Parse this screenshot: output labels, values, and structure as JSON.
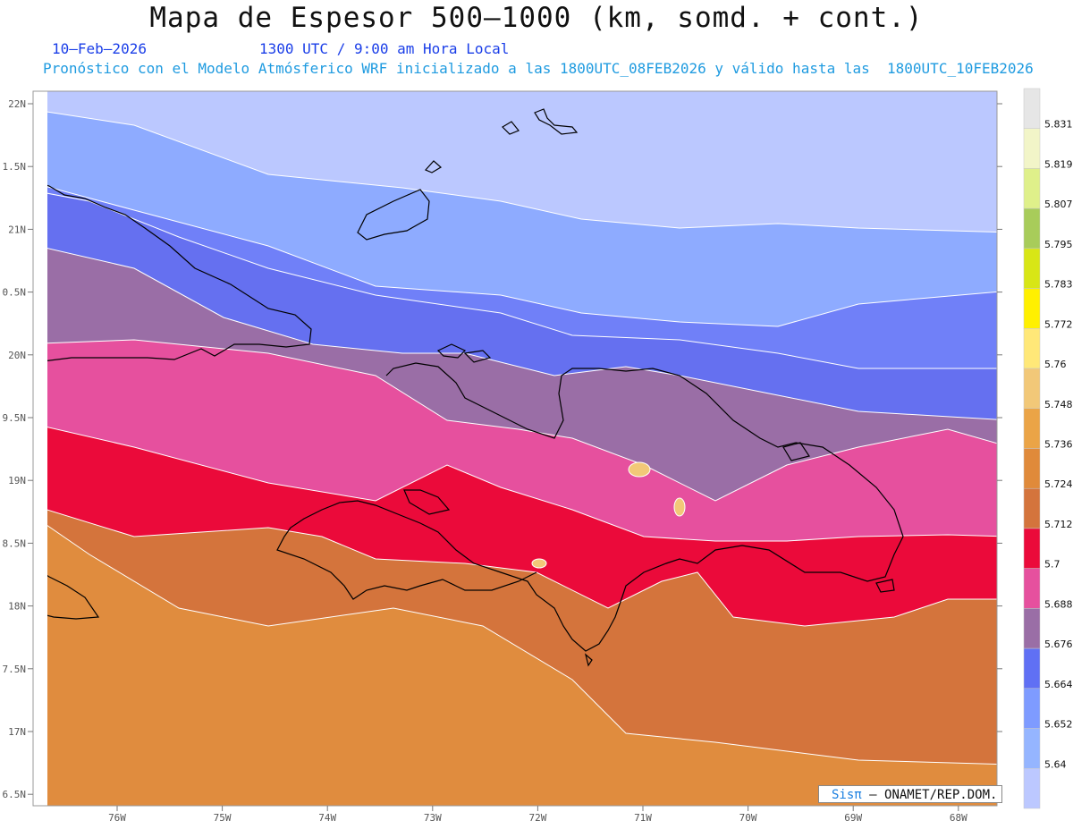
{
  "header": {
    "title": "Mapa de Espesor 500–1000 (km, somd. + cont.)",
    "date": "10–Feb–2026",
    "time": "1300 UTC / 9:00 am Hora Local",
    "forecast": "Pronóstico con el Modelo Atmósferico WRF inicializado a las 1800UTC_08FEB2026 y válido hasta las  1800UTC_10FEB2026"
  },
  "axes": {
    "lat_labels": [
      "22N",
      "1.5N",
      "21N",
      "0.5N",
      "20N",
      "9.5N",
      "19N",
      "8.5N",
      "18N",
      "7.5N",
      "17N",
      "6.5N"
    ],
    "lon_labels": [
      "76W",
      "75W",
      "74W",
      "73W",
      "72W",
      "71W",
      "70W",
      "69W",
      "68W"
    ]
  },
  "legend": {
    "labels": [
      "5.831",
      "5.819",
      "5.807",
      "5.795",
      "5.783",
      "5.772",
      "5.76",
      "5.748",
      "5.736",
      "5.724",
      "5.712",
      "5.7",
      "5.688",
      "5.676",
      "5.664",
      "5.652",
      "5.64"
    ],
    "colors": [
      "#e6e6e6",
      "#f2f5c8",
      "#dff08a",
      "#a8cc5a",
      "#d8e616",
      "#fff000",
      "#ffe878",
      "#f2c878",
      "#eba446",
      "#e08a3a",
      "#d4743c",
      "#eb0a3a",
      "#e6509e",
      "#9a6ea6",
      "#6070f4",
      "#7e9bff",
      "#95b5ff",
      "#bcc8ff"
    ]
  },
  "map": {
    "band_colors": [
      "#bbc8ff",
      "#8eabff",
      "#7080f8",
      "#6570f0",
      "#9a6ea6",
      "#e6509e",
      "#eb0a3a",
      "#d4743c",
      "#e08c3e"
    ],
    "coast_color": "#000000",
    "contour_color": "#ffffff"
  },
  "credit": {
    "brand": "Sisπ",
    "org": "– ONAMET/REP.DOM."
  }
}
